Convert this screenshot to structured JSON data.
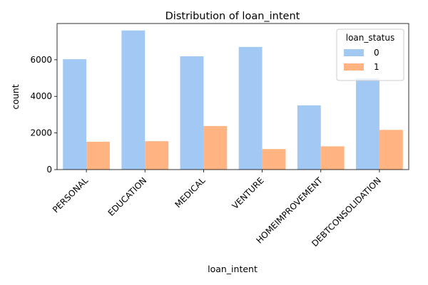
{
  "chart_data": {
    "type": "bar",
    "title": "Distribution of loan_intent",
    "xlabel": "loan_intent",
    "ylabel": "count",
    "categories": [
      "PERSONAL",
      "EDUCATION",
      "MEDICAL",
      "VENTURE",
      "HOMEIMPROVEMENT",
      "DEBTCONSOLIDATION"
    ],
    "series": [
      {
        "name": "0",
        "color": "#a1c9f4",
        "values": [
          6030,
          7600,
          6190,
          6700,
          3510,
          4990
        ]
      },
      {
        "name": "1",
        "color": "#ffb482",
        "values": [
          1520,
          1550,
          2380,
          1120,
          1270,
          2170
        ]
      }
    ],
    "ylim": [
      0,
      7980
    ],
    "yticks": [
      0,
      2000,
      4000,
      6000
    ],
    "legend": {
      "title": "loan_status",
      "position": "top-right"
    },
    "grid": false
  }
}
